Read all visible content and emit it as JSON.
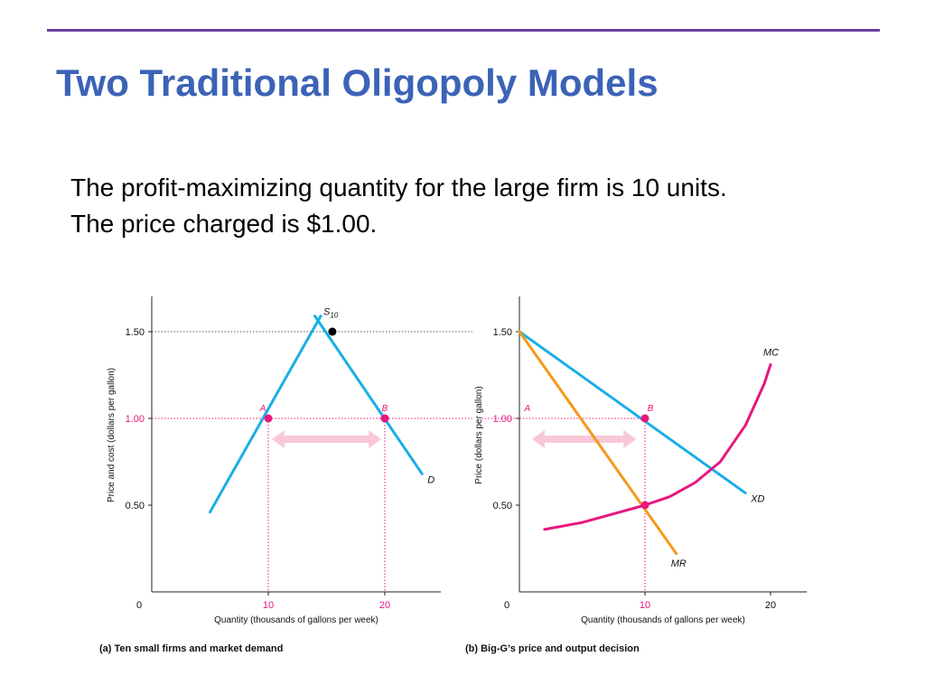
{
  "slide": {
    "title": "Two Traditional Oligopoly Models",
    "lines": [
      "The profit-maximizing quantity for the large firm is 10 units.",
      "The price charged is $1.00."
    ]
  },
  "colors": {
    "title": "#3b63b6",
    "rule": "#6a3fa0",
    "supply_demand": "#1aaee5",
    "mr": "#f39a1e",
    "mc": "#e8177e",
    "arrow": "#f9c8d8",
    "highlight": "#e8177e"
  },
  "chart_data": [
    {
      "type": "line",
      "caption": "(a) Ten small firms and market demand",
      "xlabel": "Quantity (thousands of gallons per week)",
      "ylabel": "Price and cost (dollars per gallon)",
      "xlim": [
        0,
        25
      ],
      "ylim": [
        0,
        1.7
      ],
      "x_ticks": [
        "10",
        "20"
      ],
      "y_ticks": [
        "0.50",
        "1.00",
        "1.50"
      ],
      "origin_label": "0",
      "series": [
        {
          "name": "S10",
          "label_main": "S",
          "label_sub": "10",
          "color": "#1aaee5",
          "points": [
            [
              5,
              0.46
            ],
            [
              14.5,
              1.59
            ]
          ]
        },
        {
          "name": "D",
          "label_main": "D",
          "color": "#1aaee5",
          "points": [
            [
              14,
              1.59
            ],
            [
              23.2,
              0.68
            ]
          ]
        }
      ],
      "points": [
        {
          "label": "A",
          "x": 10,
          "y": 1.0,
          "color": "#e8177e"
        },
        {
          "label": "B",
          "x": 20,
          "y": 1.0,
          "color": "#e8177e"
        },
        {
          "label": "",
          "x": 15.5,
          "y": 1.5,
          "color": "#000000"
        }
      ],
      "guides": [
        {
          "orientation": "h",
          "y": 1.5,
          "x_to": 27.5,
          "color": "#555555"
        },
        {
          "orientation": "h",
          "y": 1.0,
          "x_to": 27.5,
          "color": "#e8177e"
        },
        {
          "orientation": "v",
          "x": 10,
          "y": 1.0,
          "color": "#e8177e"
        },
        {
          "orientation": "v",
          "x": 20,
          "y": 1.0,
          "color": "#e8177e"
        }
      ],
      "arrow": {
        "y": 0.88,
        "x1": 10.3,
        "x2": 19.7,
        "color": "#f9c8d8"
      },
      "highlight_ticks": [
        "10",
        "20",
        "1.00"
      ]
    },
    {
      "type": "line",
      "caption": "(b) Big-G’s price and output decision",
      "xlabel": "Quantity (thousands of gallons per week)",
      "ylabel": "Price (dollars per gallon)",
      "xlim": [
        0,
        23
      ],
      "ylim": [
        0,
        1.7
      ],
      "x_ticks": [
        "10",
        "20"
      ],
      "y_ticks": [
        "0.50",
        "1.00",
        "1.50"
      ],
      "origin_label": "0",
      "series": [
        {
          "name": "XD",
          "label_main": "XD",
          "color": "#1aaee5",
          "points": [
            [
              0,
              1.5
            ],
            [
              18,
              0.57
            ]
          ]
        },
        {
          "name": "MR",
          "label_main": "MR",
          "color": "#f39a1e",
          "points": [
            [
              0,
              1.5
            ],
            [
              12.5,
              0.22
            ]
          ]
        },
        {
          "name": "MC",
          "label_main": "MC",
          "color": "#e8177e",
          "curve": [
            [
              2,
              0.36
            ],
            [
              5,
              0.4
            ],
            [
              8,
              0.46
            ],
            [
              10,
              0.5
            ],
            [
              12,
              0.55
            ],
            [
              14,
              0.63
            ],
            [
              16,
              0.75
            ],
            [
              18,
              0.96
            ],
            [
              19.5,
              1.2
            ],
            [
              20,
              1.31
            ]
          ]
        }
      ],
      "points": [
        {
          "label": "A",
          "x": 0.2,
          "y": 1.0,
          "color": "#e8177e",
          "label_only": true
        },
        {
          "label": "B",
          "x": 10,
          "y": 1.0,
          "color": "#e8177e"
        },
        {
          "label": "",
          "x": 10,
          "y": 0.5,
          "color": "#e8177e"
        }
      ],
      "guides": [
        {
          "orientation": "h",
          "y": 1.0,
          "x_from": -3,
          "x_to": 10,
          "color": "#e8177e"
        },
        {
          "orientation": "v",
          "x": 10,
          "y": 1.0,
          "color": "#e8177e"
        }
      ],
      "arrow": {
        "y": 0.88,
        "x1": 1.0,
        "x2": 9.3,
        "color": "#f9c8d8"
      },
      "highlight_ticks": [
        "10",
        "1.00"
      ]
    }
  ]
}
